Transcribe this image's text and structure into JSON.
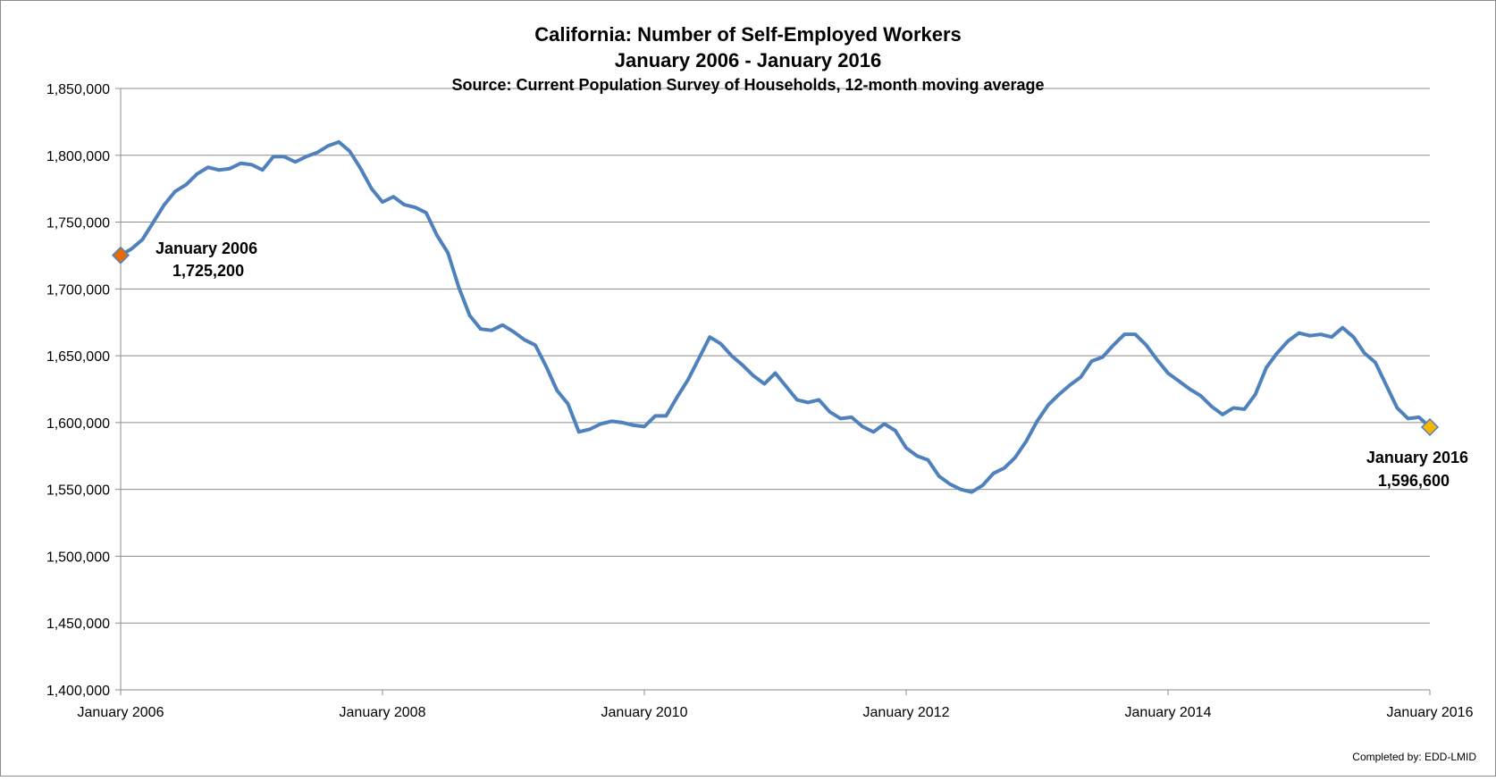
{
  "chart_data": {
    "type": "line",
    "title_line1": "California: Number of Self-Employed Workers",
    "title_line2": "January 2006 - January 2016",
    "subtitle": "Source: Current Population Survey of Households, 12-month moving average",
    "xlabel": "",
    "ylabel": "",
    "ylim": [
      1400000,
      1850000
    ],
    "y_ticks": [
      1400000,
      1450000,
      1500000,
      1550000,
      1600000,
      1650000,
      1700000,
      1750000,
      1800000,
      1850000
    ],
    "y_tick_labels": [
      "1,400,000",
      "1,450,000",
      "1,500,000",
      "1,550,000",
      "1,600,000",
      "1,650,000",
      "1,700,000",
      "1,750,000",
      "1,800,000",
      "1,850,000"
    ],
    "x_tick_labels": [
      "January 2006",
      "January 2008",
      "January 2010",
      "January 2012",
      "January 2014",
      "January 2016"
    ],
    "x_start": "January 2006",
    "x_end": "January 2016",
    "grid": true,
    "line_color": "#4f81bd",
    "series": [
      {
        "values": [
          1725200,
          1730000,
          1737000,
          1750000,
          1763000,
          1773000,
          1778000,
          1786000,
          1791000,
          1789000,
          1790000,
          1794000,
          1793000,
          1789000,
          1799000,
          1799000,
          1795000,
          1799000,
          1802000,
          1807000,
          1810000,
          1803000,
          1790000,
          1775000,
          1765000,
          1769000,
          1763000,
          1761000,
          1757000,
          1740000,
          1727000,
          1701000,
          1680000,
          1670000,
          1669000,
          1673000,
          1668000,
          1662000,
          1658000,
          1642000,
          1624000,
          1614000,
          1593000,
          1595000,
          1599000,
          1601000,
          1600000,
          1598000,
          1597000,
          1605000,
          1605000,
          1619000,
          1632000,
          1648000,
          1664000,
          1659000,
          1650000,
          1643000,
          1635000,
          1629000,
          1637000,
          1627000,
          1617000,
          1615000,
          1617000,
          1608000,
          1603000,
          1604000,
          1597000,
          1593000,
          1599000,
          1594000,
          1581000,
          1575000,
          1572000,
          1560000,
          1554000,
          1550000,
          1548000,
          1553000,
          1562000,
          1566000,
          1574000,
          1586000,
          1601000,
          1613000,
          1621000,
          1628000,
          1634000,
          1646000,
          1649000,
          1658000,
          1666000,
          1666000,
          1658000,
          1647000,
          1637000,
          1631000,
          1625000,
          1620000,
          1612000,
          1606000,
          1611000,
          1610000,
          1621000,
          1641000,
          1652000,
          1661000,
          1667000,
          1665000,
          1666000,
          1664000,
          1671000,
          1664000,
          1652000,
          1645000,
          1628000,
          1611000,
          1603000,
          1604000,
          1596600
        ]
      }
    ],
    "markers": [
      {
        "label_date": "January 2006",
        "label_value": "1,725,200",
        "value": 1725200,
        "index": 0,
        "color": "#e36c0a"
      },
      {
        "label_date": "January 2016",
        "label_value": "1,596,600",
        "value": 1596600,
        "index": 120,
        "color": "#f7b500"
      }
    ],
    "credit": "Completed by: EDD-LMID"
  }
}
